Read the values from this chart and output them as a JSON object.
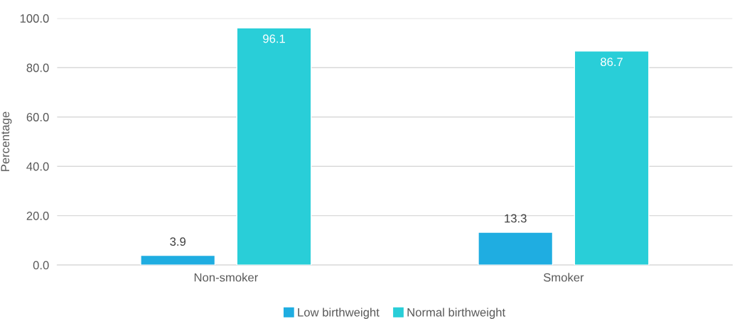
{
  "chart_data": {
    "type": "bar",
    "ylabel": "Percentage",
    "categories": [
      "Non-smoker",
      "Smoker"
    ],
    "series": [
      {
        "name": "Low birthweight",
        "color": "#1fade1",
        "values": [
          3.9,
          13.3
        ]
      },
      {
        "name": "Normal birthweight",
        "color": "#29ced8",
        "values": [
          96.1,
          86.7
        ]
      }
    ],
    "ylim": [
      0,
      100
    ],
    "yticks": [
      {
        "value": 0,
        "label": "0.0"
      },
      {
        "value": 20,
        "label": "20.0"
      },
      {
        "value": 40,
        "label": "40.0"
      },
      {
        "value": 60,
        "label": "60.0"
      },
      {
        "value": 80,
        "label": "80.0"
      },
      {
        "value": 100,
        "label": "100.0"
      }
    ],
    "grid": "y",
    "legend": "bottom",
    "data_labels": true
  }
}
